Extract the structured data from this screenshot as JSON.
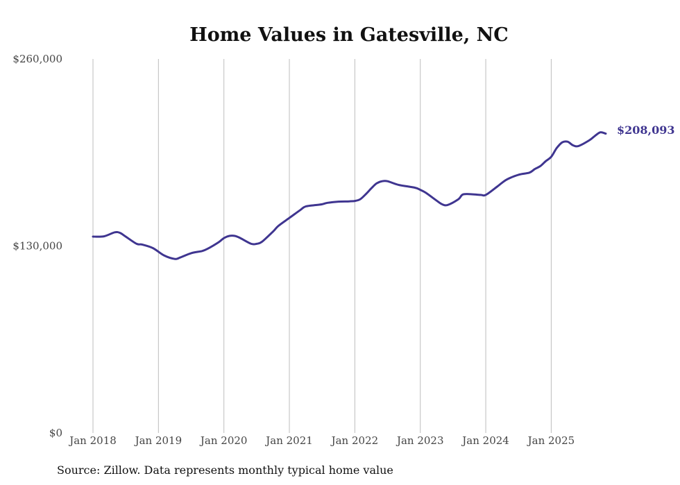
{
  "chart_data": {
    "type": "line",
    "title": "Home Values in Gatesville, NC",
    "xlabel": "",
    "ylabel": "",
    "ylim": [
      0,
      260000
    ],
    "yticks": [
      {
        "value": 0,
        "label": "$0"
      },
      {
        "value": 130000,
        "label": "$130,000"
      },
      {
        "value": 260000,
        "label": "$260,000"
      }
    ],
    "xticks": [
      {
        "value": 2018.0,
        "label": "Jan 2018"
      },
      {
        "value": 2019.0,
        "label": "Jan 2019"
      },
      {
        "value": 2020.0,
        "label": "Jan 2020"
      },
      {
        "value": 2021.0,
        "label": "Jan 2021"
      },
      {
        "value": 2022.0,
        "label": "Jan 2022"
      },
      {
        "value": 2023.0,
        "label": "Jan 2023"
      },
      {
        "value": 2024.0,
        "label": "Jan 2024"
      },
      {
        "value": 2025.0,
        "label": "Jan 2025"
      }
    ],
    "xlim": [
      2018.0,
      2025.833
    ],
    "grid": "vertical",
    "series": [
      {
        "name": "Typical home value",
        "color": "#3f3590",
        "x": [
          2018.0,
          2018.167,
          2018.333,
          2018.417,
          2018.5,
          2018.667,
          2018.75,
          2018.917,
          2019.083,
          2019.25,
          2019.333,
          2019.5,
          2019.667,
          2019.75,
          2019.917,
          2020.0,
          2020.083,
          2020.167,
          2020.25,
          2020.417,
          2020.5,
          2020.583,
          2020.75,
          2020.833,
          2021.0,
          2021.167,
          2021.25,
          2021.417,
          2021.5,
          2021.583,
          2021.75,
          2021.917,
          2022.0,
          2022.083,
          2022.167,
          2022.25,
          2022.333,
          2022.417,
          2022.5,
          2022.667,
          2022.917,
          2023.0,
          2023.083,
          2023.25,
          2023.333,
          2023.417,
          2023.583,
          2023.667,
          2023.917,
          2024.0,
          2024.167,
          2024.25,
          2024.333,
          2024.5,
          2024.667,
          2024.75,
          2024.833,
          2024.917,
          2025.0,
          2025.083,
          2025.167,
          2025.25,
          2025.333,
          2025.417,
          2025.583,
          2025.667,
          2025.75,
          2025.833
        ],
        "values": [
          136500,
          136700,
          139500,
          139000,
          136500,
          131500,
          131000,
          128500,
          123500,
          121000,
          122000,
          125000,
          126500,
          128000,
          132500,
          135500,
          137000,
          137000,
          135500,
          131500,
          131500,
          133000,
          140000,
          144000,
          149500,
          155000,
          157500,
          158500,
          159000,
          160000,
          160800,
          161000,
          161300,
          162500,
          166000,
          170000,
          173500,
          175000,
          175000,
          172500,
          170500,
          169000,
          167000,
          161500,
          159000,
          158500,
          162500,
          166000,
          165500,
          165500,
          171000,
          174000,
          176500,
          179500,
          181000,
          183500,
          185500,
          189000,
          192000,
          198000,
          202000,
          202500,
          200000,
          199500,
          203500,
          206500,
          209000,
          208093
        ]
      }
    ],
    "end_label": "$208,093",
    "source": "Source: Zillow. Data represents monthly typical home value"
  }
}
